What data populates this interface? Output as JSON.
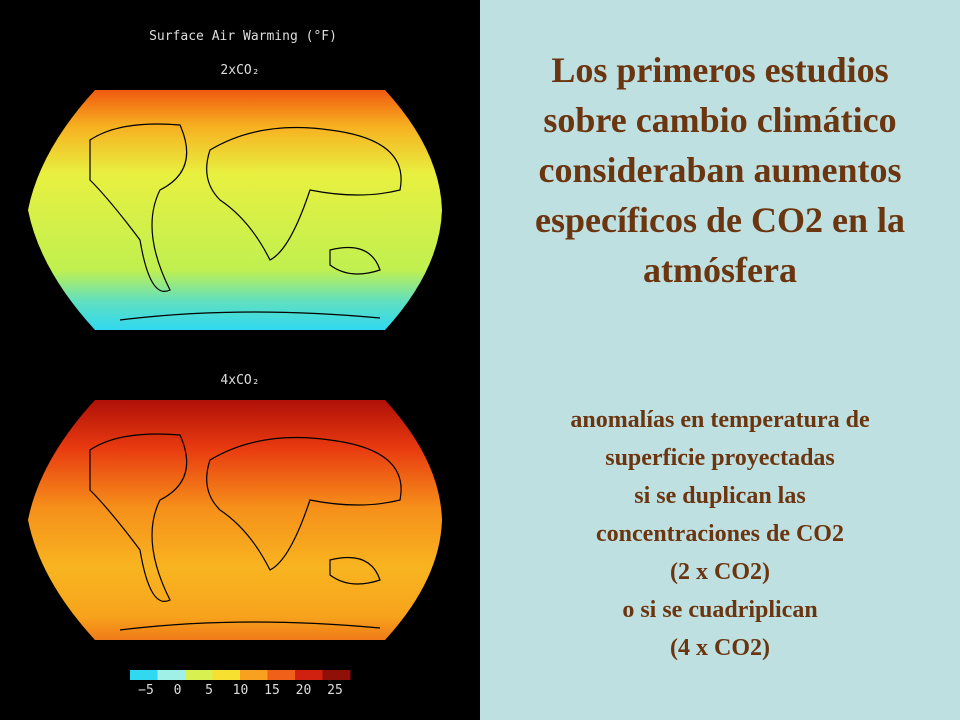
{
  "left_panel": {
    "figure_title": "Surface Air Warming (°F)",
    "maps": [
      {
        "label": "2xCO₂"
      },
      {
        "label": "4xCO₂"
      }
    ],
    "colorbar": {
      "ticks": [
        "−5",
        "0",
        "5",
        "10",
        "15",
        "20",
        "25"
      ]
    }
  },
  "right_panel": {
    "heading": [
      "Los primeros estudios",
      "sobre cambio climático",
      "consideraban  aumentos",
      "específicos de CO2 en la",
      "atmósfera"
    ],
    "body": [
      "anomalías en temperatura de",
      "superficie proyectadas",
      "si se duplican las",
      "concentraciones de CO2",
      "(2 x CO2)",
      "o si se cuadriplican",
      "(4 x CO2)"
    ]
  }
}
